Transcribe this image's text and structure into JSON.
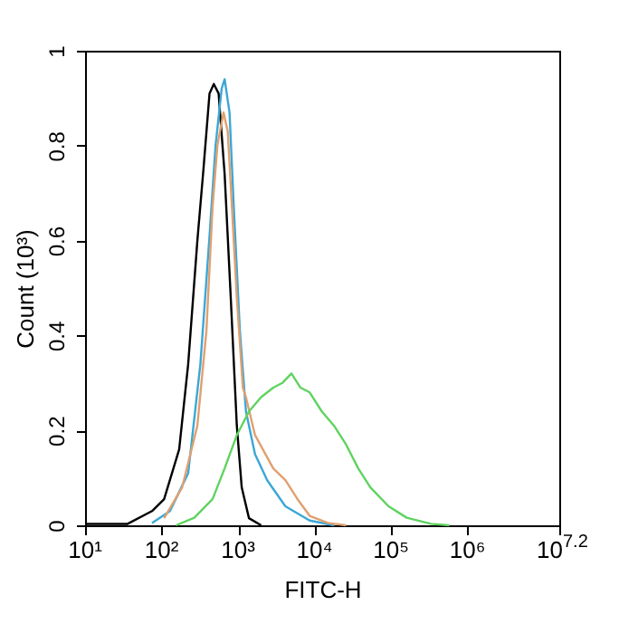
{
  "chart_data": {
    "type": "line",
    "xlabel": "FITC-H",
    "ylabel": "Count (10³)",
    "log": "x",
    "grid": false,
    "legend": false,
    "marker": "none",
    "line_style": "solid",
    "xlim": [
      10,
      15848932
    ],
    "ylim": [
      0,
      1
    ],
    "xticks": [
      {
        "value": 10,
        "label": "10¹"
      },
      {
        "value": 100,
        "label": "10²"
      },
      {
        "value": 1000,
        "label": "10³"
      },
      {
        "value": 10000,
        "label": "10⁴"
      },
      {
        "value": 100000,
        "label": "10⁵"
      },
      {
        "value": 1000000,
        "label": "10⁶"
      },
      {
        "value": 15848932,
        "label": "10$^{7.2}$"
      }
    ],
    "yticks": [
      0,
      0.2,
      0.4,
      0.6,
      0.8,
      1
    ],
    "series": [
      {
        "color": "#000000",
        "x": [
          10,
          36,
          75,
          108,
          170,
          223,
          294,
          353,
          424,
          482,
          557,
          668,
          803,
          964,
          1117,
          1390,
          2004
        ],
        "values": [
          0.003,
          0.003,
          0.03,
          0.055,
          0.16,
          0.34,
          0.6,
          0.75,
          0.91,
          0.93,
          0.91,
          0.74,
          0.48,
          0.21,
          0.08,
          0.015,
          0
        ]
      },
      {
        "color": "#3ba7d6",
        "x": [
          75,
          129,
          223,
          322,
          424,
          508,
          611,
          668,
          774,
          880,
          1057,
          1269,
          1668,
          2405,
          4160,
          8650,
          17950
        ],
        "values": [
          0.005,
          0.03,
          0.11,
          0.34,
          0.61,
          0.8,
          0.92,
          0.94,
          0.87,
          0.67,
          0.41,
          0.24,
          0.15,
          0.095,
          0.04,
          0.01,
          0
        ]
      },
      {
        "color": "#e0a070",
        "x": [
          108,
          186,
          294,
          386,
          464,
          537,
          646,
          733,
          833,
          964,
          1157,
          1269,
          1668,
          2885,
          4160,
          6000,
          8650,
          14960,
          25900
        ],
        "values": [
          0.015,
          0.08,
          0.21,
          0.41,
          0.67,
          0.8,
          0.87,
          0.83,
          0.67,
          0.48,
          0.29,
          0.27,
          0.19,
          0.12,
          0.095,
          0.055,
          0.02,
          0.005,
          0
        ]
      },
      {
        "color": "#5fd35f",
        "x": [
          155,
          268,
          464,
          668,
          964,
          1390,
          2004,
          2885,
          3795,
          4990,
          6560,
          8650,
          12450,
          17950,
          25900,
          37250,
          53700,
          92900,
          160700,
          334000,
          578000
        ],
        "values": [
          0,
          0.016,
          0.055,
          0.12,
          0.19,
          0.24,
          0.27,
          0.29,
          0.3,
          0.32,
          0.29,
          0.28,
          0.24,
          0.21,
          0.17,
          0.12,
          0.08,
          0.04,
          0.016,
          0.003,
          0
        ]
      }
    ]
  }
}
